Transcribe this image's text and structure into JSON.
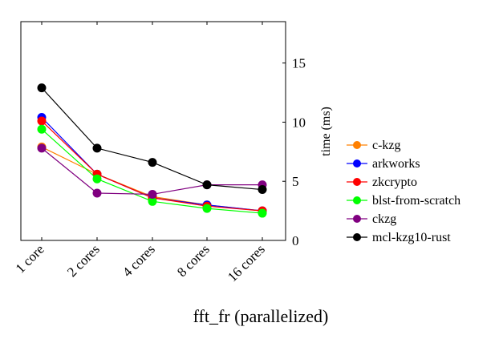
{
  "chart_data": {
    "type": "line",
    "title": "fft_fr (parallelized)",
    "xlabel": "",
    "ylabel": "time (ms)",
    "categories": [
      "1 core",
      "2 cores",
      "4 cores",
      "8 cores",
      "16 cores"
    ],
    "ylim": [
      0,
      18.5
    ],
    "yticks": [
      0,
      5,
      10,
      15
    ],
    "ytick_labels": [
      "0",
      "5",
      "10",
      "15"
    ],
    "grid": false,
    "legend_position": "right",
    "series": [
      {
        "name": "c-kzg",
        "color": "#ff8000",
        "values": [
          7.9,
          5.6,
          3.7,
          3.0,
          2.5
        ]
      },
      {
        "name": "arkworks",
        "color": "#0000ff",
        "values": [
          10.4,
          5.6,
          3.6,
          3.0,
          2.5
        ]
      },
      {
        "name": "zkcrypto",
        "color": "#ff0000",
        "values": [
          10.1,
          5.6,
          3.6,
          2.9,
          2.5
        ]
      },
      {
        "name": "blst-from-scratch",
        "color": "#00ff00",
        "values": [
          9.4,
          5.2,
          3.3,
          2.7,
          2.3
        ]
      },
      {
        "name": "ckzg",
        "color": "#800080",
        "values": [
          7.8,
          4.0,
          3.9,
          4.7,
          4.7
        ]
      },
      {
        "name": "mcl-kzg10-rust",
        "color": "#000000",
        "values": [
          12.9,
          7.8,
          6.6,
          4.7,
          4.3
        ]
      }
    ]
  }
}
